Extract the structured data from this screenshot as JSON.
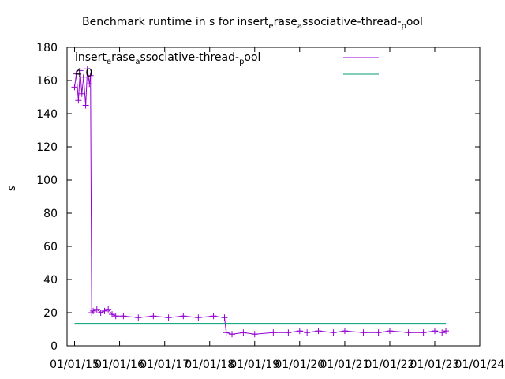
{
  "chart_data": {
    "type": "line",
    "title_parts": [
      "Benchmark runtime in s for insert",
      "e",
      "rase",
      "a",
      "ssociative-thread-",
      "p",
      "ool"
    ],
    "ylabel": "s",
    "xlabel": "",
    "ylim": [
      0,
      180
    ],
    "yticks": [
      "0",
      "20",
      "40",
      "60",
      "80",
      "100",
      "120",
      "140",
      "160",
      "180"
    ],
    "xlim": [
      "2014-11-01",
      "2024-01-01"
    ],
    "xticks": [
      "01/01/15",
      "01/01/16",
      "01/01/17",
      "01/01/18",
      "01/01/19",
      "01/01/20",
      "01/01/21",
      "01/01/22",
      "01/01/23",
      "01/01/24"
    ],
    "legend_placement": "top-left",
    "legend_label_parts": [
      "insert",
      "e",
      "rase",
      "a",
      "ssociative-thread-",
      "p",
      "ool"
    ],
    "legend_value": "4.0",
    "grid": false,
    "series": [
      {
        "color": "#9400d3",
        "marker": "+",
        "x": [
          "2015-01-01",
          "2015-01-15",
          "2015-02-01",
          "2015-02-15",
          "2015-03-01",
          "2015-03-15",
          "2015-04-01",
          "2015-04-15",
          "2015-05-01",
          "2015-05-10",
          "2015-05-20",
          "2015-06-01",
          "2015-07-01",
          "2015-08-01",
          "2015-09-01",
          "2015-10-01",
          "2015-11-01",
          "2015-12-01",
          "2016-02-01",
          "2016-06-01",
          "2016-10-01",
          "2017-02-01",
          "2017-06-01",
          "2017-10-01",
          "2018-02-01",
          "2018-05-01",
          "2018-05-15",
          "2018-07-01",
          "2018-10-01",
          "2019-01-01",
          "2019-06-01",
          "2019-10-01",
          "2020-01-01",
          "2020-03-01",
          "2020-06-01",
          "2020-10-01",
          "2021-01-01",
          "2021-06-01",
          "2021-10-01",
          "2022-01-01",
          "2022-06-01",
          "2022-10-01",
          "2023-01-01",
          "2023-03-01",
          "2023-04-01"
        ],
        "values": [
          156,
          164,
          148,
          166,
          152,
          162,
          145,
          167,
          158,
          163,
          20,
          21,
          22,
          20,
          21,
          22,
          19,
          18,
          18,
          17,
          18,
          17,
          18,
          17,
          18,
          17,
          8,
          7,
          8,
          7,
          8,
          8,
          9,
          8,
          9,
          8,
          9,
          8,
          8,
          9,
          8,
          8,
          9,
          8,
          9
        ]
      },
      {
        "color": "#009e73",
        "marker": "",
        "x": [
          "2015-01-01",
          "2023-04-01"
        ],
        "values": [
          13.5,
          13.5
        ]
      }
    ]
  }
}
